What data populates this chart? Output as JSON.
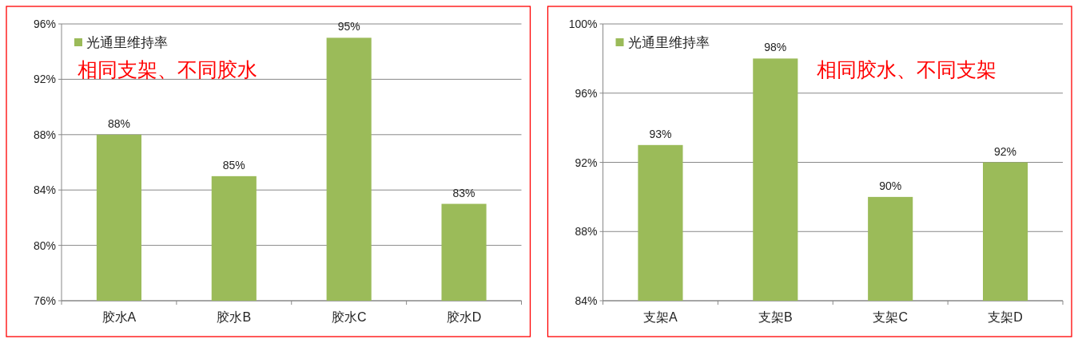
{
  "chart_data": [
    {
      "type": "bar",
      "categories": [
        "胶水A",
        "胶水B",
        "胶水C",
        "胶水D"
      ],
      "series": [
        {
          "name": "光通里维持率",
          "color": "#9bbb59",
          "values": [
            88,
            85,
            95,
            83
          ],
          "value_labels": [
            "88%",
            "85%",
            "95%",
            "83%"
          ]
        }
      ],
      "ylim": [
        76,
        96
      ],
      "yticks": [
        {
          "value": 76,
          "label": "76%"
        },
        {
          "value": 80,
          "label": "80%"
        },
        {
          "value": 84,
          "label": "84%"
        },
        {
          "value": 88,
          "label": "88%"
        },
        {
          "value": 92,
          "label": "92%"
        },
        {
          "value": 96,
          "label": "96%"
        }
      ],
      "grid": "y",
      "legend": "top left",
      "annotations": [
        "相同支架、不同胶水"
      ]
    },
    {
      "type": "bar",
      "categories": [
        "支架A",
        "支架B",
        "支架C",
        "支架D"
      ],
      "series": [
        {
          "name": "光通里维持率",
          "color": "#9bbb59",
          "values": [
            93,
            98,
            90,
            92
          ],
          "value_labels": [
            "93%",
            "98%",
            "90%",
            "92%"
          ]
        }
      ],
      "ylim": [
        84,
        100
      ],
      "yticks": [
        {
          "value": 84,
          "label": "84%"
        },
        {
          "value": 88,
          "label": "88%"
        },
        {
          "value": 92,
          "label": "92%"
        },
        {
          "value": 96,
          "label": "96%"
        },
        {
          "value": 100,
          "label": "100%"
        }
      ],
      "grid": "y",
      "legend": "top left",
      "annotations": [
        "相同胶水、不同支架"
      ]
    }
  ]
}
